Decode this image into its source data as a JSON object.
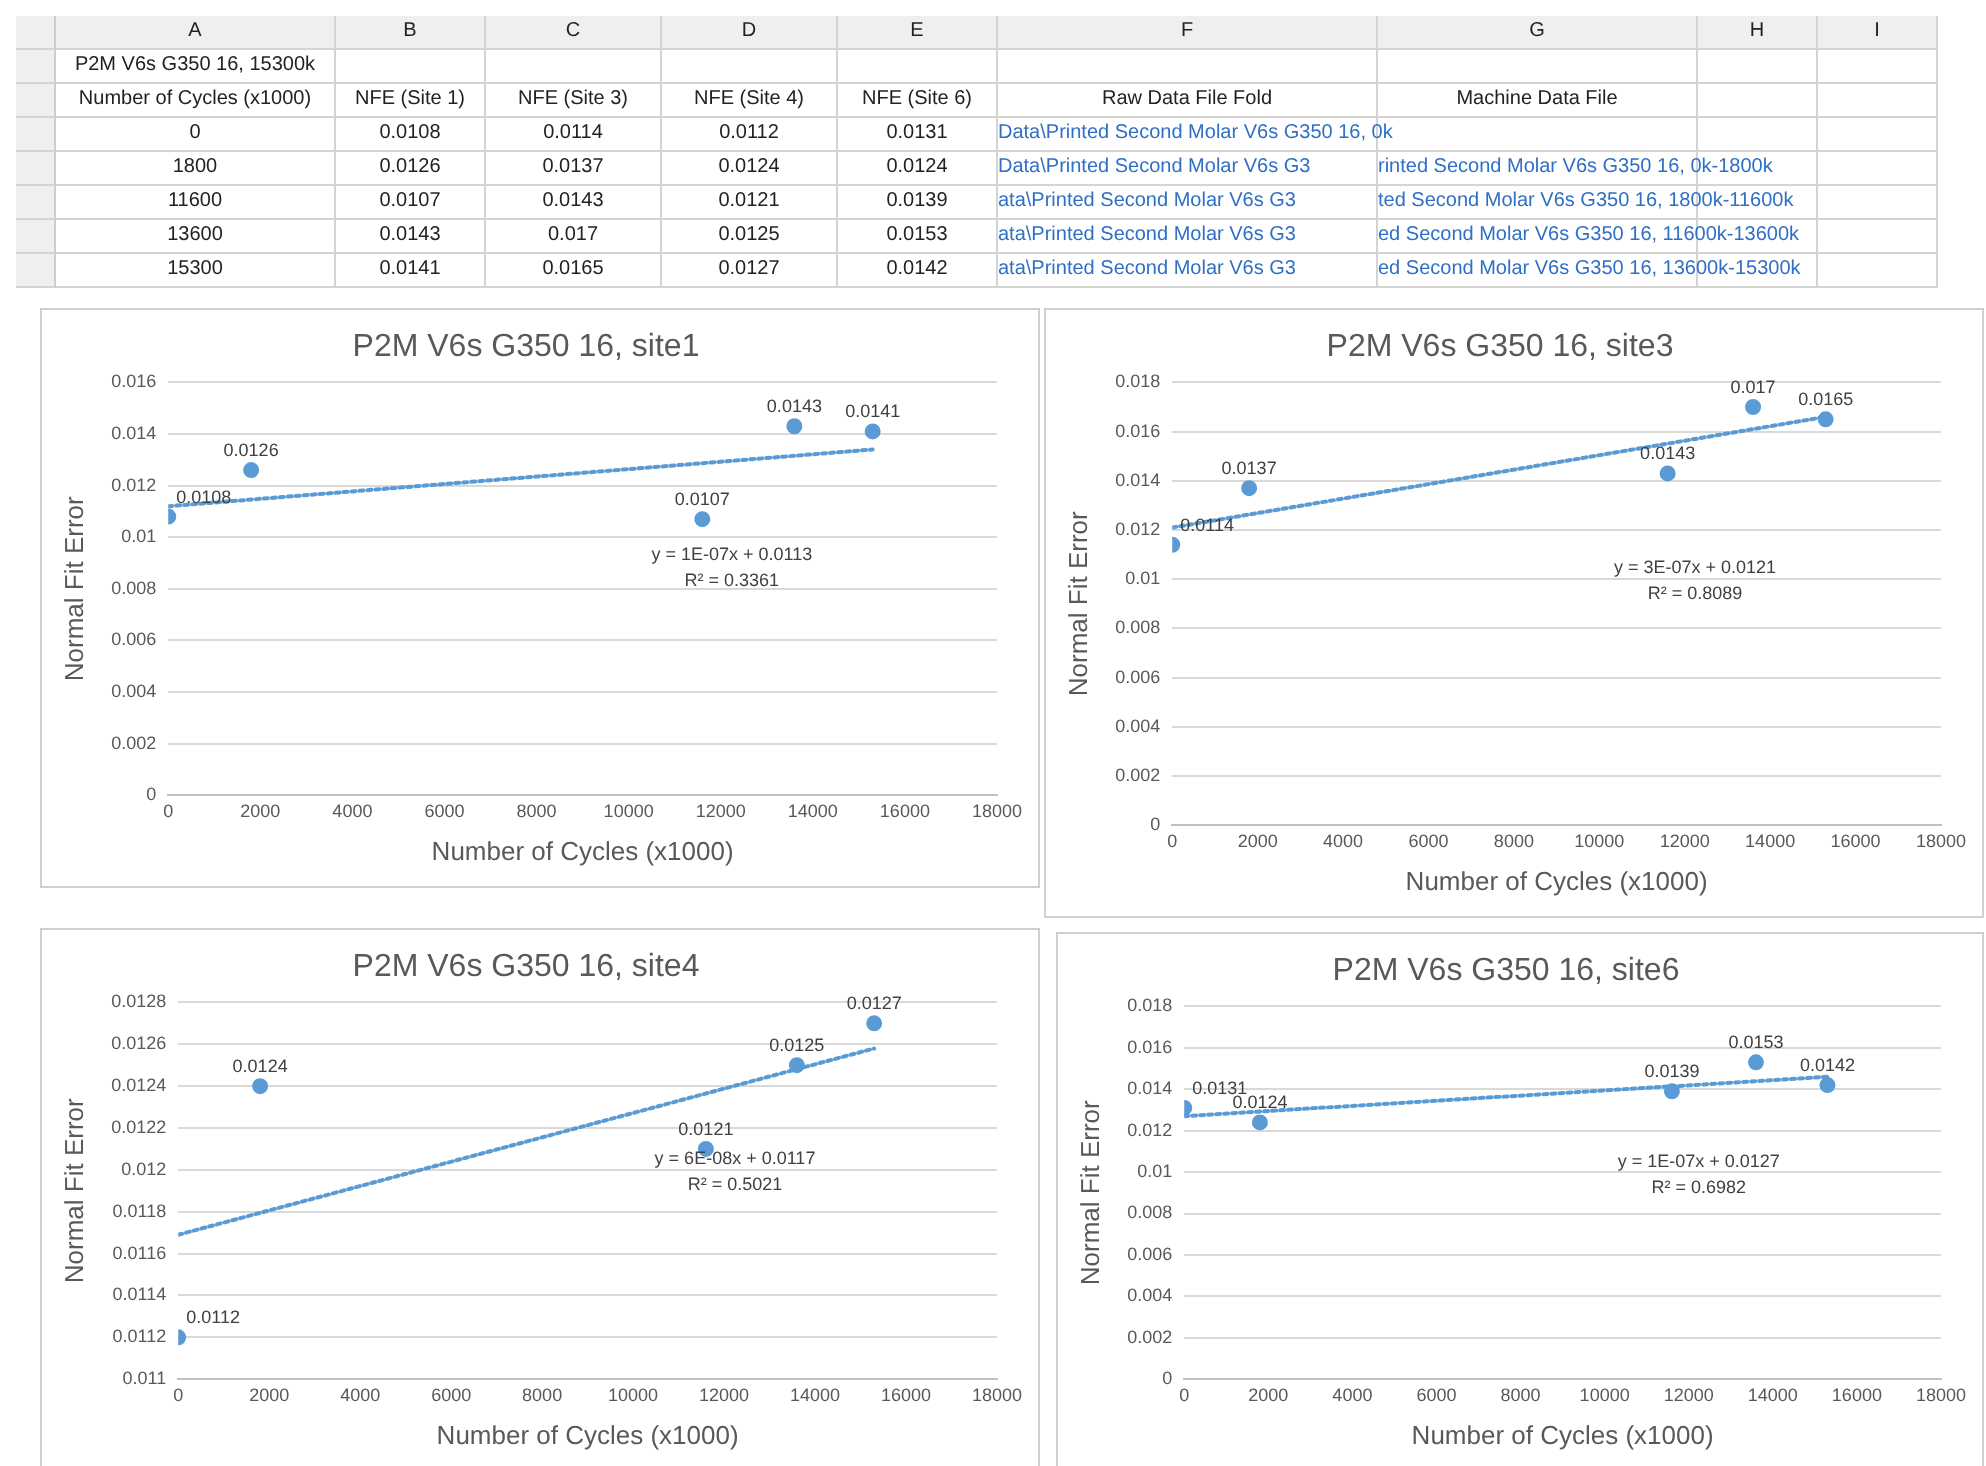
{
  "chart_data": [
    {
      "type": "other",
      "annotations": [
        "A",
        "B",
        "C",
        "D",
        "E",
        "F",
        "G",
        "H",
        "I",
        "P2M V6s G350 16, 15300k",
        "Number of Cycles (x1000)",
        "NFE (Site 1)",
        "NFE (Site 3)",
        "NFE (Site 4)",
        "NFE (Site 6)",
        "Raw Data File Fold",
        "Machine Data File",
        "0",
        "0.0108",
        "0.0114",
        "0.0112",
        "0.0131",
        "Data\\Printed Second Molar V6s G350 16, 0k",
        "1800",
        "0.0126",
        "0.0137",
        "0.0124",
        "0.0124",
        "Data\\Printed Second Molar V6s G3",
        "rinted Second Molar V6s G350 16, 0k-1800k",
        "11600",
        "0.0107",
        "0.0143",
        "0.0121",
        "0.0139",
        "ata\\Printed Second Molar V6s G3",
        "ted Second Molar V6s G350 16, 1800k-11600k",
        "13600",
        "0.0143",
        "0.017",
        "0.0125",
        "0.0153",
        "ata\\Printed Second Molar V6s G3",
        "ed Second Molar V6s G350 16, 11600k-13600k",
        "15300",
        "0.0141",
        "0.0165",
        "0.0127",
        "0.0142",
        "ata\\Printed Second Molar V6s G3",
        "ed Second Molar V6s G350 16, 13600k-15300k"
      ]
    },
    {
      "type": "scatter",
      "title": "P2M V6s G350 16, site1",
      "xlabel": "Number of Cycles (x1000)",
      "ylabel": "Normal Fit Error",
      "marker": "circle",
      "grid": "y",
      "series": [
        {
          "type": "scatter",
          "color": "#5b9bd5",
          "x": [
            0,
            1800,
            11600,
            13600,
            15300
          ],
          "values": [
            0.0108,
            0.0126,
            0.0107,
            0.0143,
            0.0141
          ],
          "value_labels": [
            "0.0108",
            "0.0126",
            "0.0107",
            "0.0143",
            "0.0141"
          ]
        },
        {
          "type": "line",
          "color": "#5b9bd5",
          "line_style": "dotted",
          "marker": "none",
          "x": [
            0,
            15300
          ],
          "values": [
            0.0112,
            0.0134
          ]
        }
      ],
      "xlim": [
        0,
        18000
      ],
      "xticks": [
        0,
        2000,
        4000,
        6000,
        8000,
        10000,
        12000,
        14000,
        16000,
        18000
      ],
      "ylim": [
        0,
        0.016
      ],
      "yticks": [
        0,
        0.002,
        0.004,
        0.006,
        0.008,
        0.01,
        0.012,
        0.014,
        0.016
      ],
      "annotations": [
        "y = 1E-07x + 0.0113",
        "R² = 0.3361"
      ]
    },
    {
      "type": "scatter",
      "title": "P2M V6s G350 16, site3",
      "xlabel": "Number of Cycles (x1000)",
      "ylabel": "Normal Fit Error",
      "marker": "circle",
      "grid": "y",
      "series": [
        {
          "type": "scatter",
          "color": "#5b9bd5",
          "x": [
            0,
            1800,
            11600,
            13600,
            15300
          ],
          "values": [
            0.0114,
            0.0137,
            0.0143,
            0.017,
            0.0165
          ],
          "value_labels": [
            "0.0114",
            "0.0137",
            "0.0143",
            "0.017",
            "0.0165"
          ]
        },
        {
          "type": "line",
          "color": "#5b9bd5",
          "line_style": "dotted",
          "marker": "none",
          "x": [
            0,
            15300
          ],
          "values": [
            0.0121,
            0.0166
          ]
        }
      ],
      "xlim": [
        0,
        18000
      ],
      "xticks": [
        0,
        2000,
        4000,
        6000,
        8000,
        10000,
        12000,
        14000,
        16000,
        18000
      ],
      "ylim": [
        0,
        0.018
      ],
      "yticks": [
        0,
        0.002,
        0.004,
        0.006,
        0.008,
        0.01,
        0.012,
        0.014,
        0.016,
        0.018
      ],
      "annotations": [
        "y = 3E-07x + 0.0121",
        "R² = 0.8089"
      ]
    },
    {
      "type": "scatter",
      "title": "P2M V6s G350 16, site4",
      "xlabel": "Number of Cycles (x1000)",
      "ylabel": "Normal Fit Error",
      "marker": "circle",
      "grid": "y",
      "series": [
        {
          "type": "scatter",
          "color": "#5b9bd5",
          "x": [
            0,
            1800,
            11600,
            13600,
            15300
          ],
          "values": [
            0.0112,
            0.0124,
            0.0121,
            0.0125,
            0.0127
          ],
          "value_labels": [
            "0.0112",
            "0.0124",
            "0.0121",
            "0.0125",
            "0.0127"
          ]
        },
        {
          "type": "line",
          "color": "#5b9bd5",
          "line_style": "dotted",
          "marker": "none",
          "x": [
            0,
            15300
          ],
          "values": [
            0.01169,
            0.01258
          ]
        }
      ],
      "xlim": [
        0,
        18000
      ],
      "xticks": [
        0,
        2000,
        4000,
        6000,
        8000,
        10000,
        12000,
        14000,
        16000,
        18000
      ],
      "ylim": [
        0.011,
        0.0128
      ],
      "yticks": [
        0.011,
        0.0112,
        0.0114,
        0.0116,
        0.0118,
        0.012,
        0.0122,
        0.0124,
        0.0126,
        0.0128
      ],
      "annotations": [
        "y = 6E-08x + 0.0117",
        "R² = 0.5021"
      ]
    },
    {
      "type": "scatter",
      "title": "P2M V6s G350 16, site6",
      "xlabel": "Number of Cycles (x1000)",
      "ylabel": "Normal Fit Error",
      "marker": "circle",
      "grid": "y",
      "series": [
        {
          "type": "scatter",
          "color": "#5b9bd5",
          "x": [
            0,
            1800,
            11600,
            13600,
            15300
          ],
          "values": [
            0.0131,
            0.0124,
            0.0139,
            0.0153,
            0.0142
          ],
          "value_labels": [
            "0.0131",
            "0.0124",
            "0.0139",
            "0.0153",
            "0.0142"
          ]
        },
        {
          "type": "line",
          "color": "#5b9bd5",
          "line_style": "dotted",
          "marker": "none",
          "x": [
            0,
            15300
          ],
          "values": [
            0.0127,
            0.0146
          ]
        }
      ],
      "xlim": [
        0,
        18000
      ],
      "xticks": [
        0,
        2000,
        4000,
        6000,
        8000,
        10000,
        12000,
        14000,
        16000,
        18000
      ],
      "ylim": [
        0,
        0.018
      ],
      "yticks": [
        0,
        0.002,
        0.004,
        0.006,
        0.008,
        0.01,
        0.012,
        0.014,
        0.016,
        0.018
      ],
      "annotations": [
        "y = 1E-07x + 0.0127",
        "R² = 0.6982"
      ]
    }
  ]
}
